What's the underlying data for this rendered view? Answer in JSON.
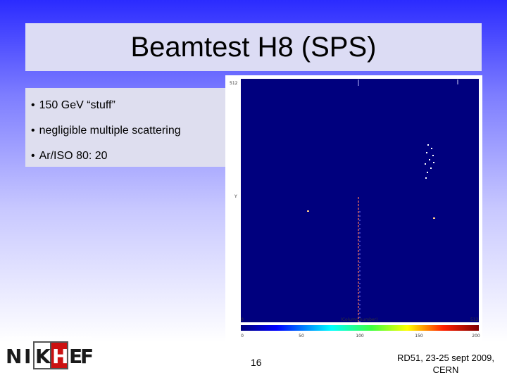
{
  "header": {
    "title": "Beamtest H8 (SPS)"
  },
  "bullets": [
    "150 GeV “stuff”",
    "negligible multiple scattering",
    "Ar/ISO 80: 20"
  ],
  "image": {
    "y_top": "512",
    "y_label": "Y",
    "y_bottom": "0",
    "x_left": "0",
    "x_label": "(Column number)",
    "x_right": "512",
    "colorbar_ticks": [
      "0",
      "50",
      "100",
      "150",
      "200"
    ]
  },
  "logo": {
    "letters": [
      "N",
      "I",
      "K",
      "H",
      "E",
      "F"
    ]
  },
  "footer": {
    "page": "16",
    "credit": [
      "RD51, 23-25 sept 2009,",
      "CERN"
    ]
  }
}
